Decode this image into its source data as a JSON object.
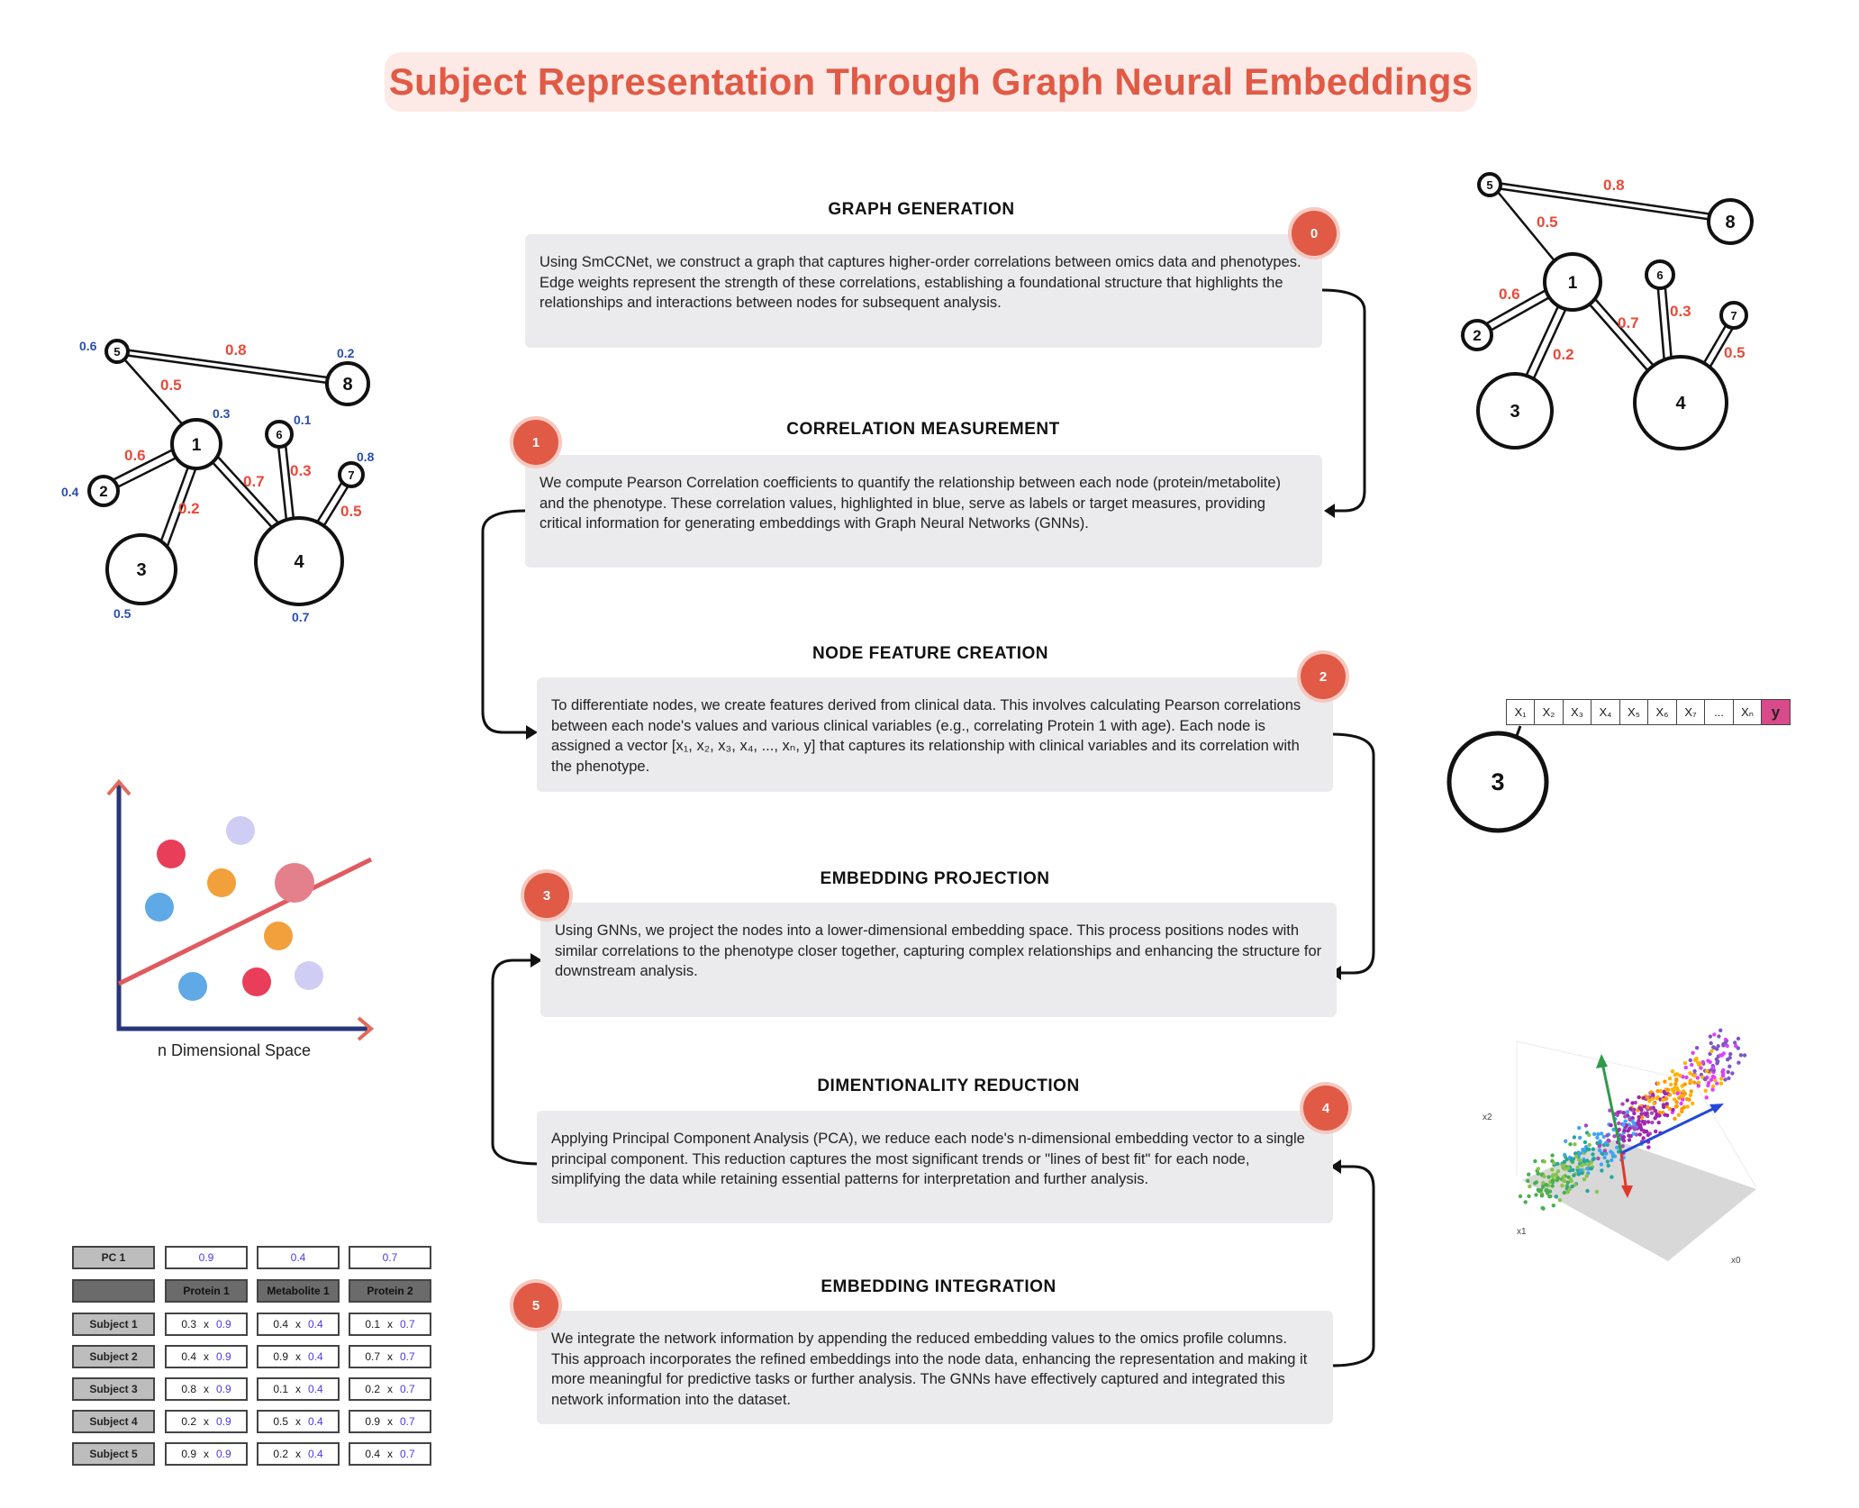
{
  "title": "Subject Representation Through Graph Neural Embeddings",
  "steps": [
    {
      "badge": "0",
      "title": "GRAPH GENERATION",
      "text": "Using SmCCNet, we construct a graph that captures higher-order correlations between omics data and phenotypes. Edge weights represent the strength of these correlations, establishing a foundational structure that highlights the relationships and interactions between nodes for subsequent analysis."
    },
    {
      "badge": "1",
      "title": "CORRELATION MEASUREMENT",
      "text": "We compute Pearson Correlation coefficients to quantify the relationship between each node (protein/metabolite) and the phenotype. These correlation values, highlighted in blue, serve as labels or target measures, providing critical information for generating embeddings with Graph Neural Networks (GNNs)."
    },
    {
      "badge": "2",
      "title": "NODE FEATURE CREATION",
      "text": "To differentiate nodes, we create features derived from clinical data. This involves calculating Pearson correlations between each node's values and various clinical variables (e.g., correlating Protein 1 with age). Each node is assigned a vector [x₁, x₂, x₃, x₄, ..., xₙ, y] that captures its relationship with clinical variables and its correlation with the phenotype."
    },
    {
      "badge": "3",
      "title": "EMBEDDING PROJECTION",
      "text": "Using GNNs, we project the nodes into a lower-dimensional embedding space. This process positions nodes with similar correlations to the phenotype closer together, capturing complex relationships and enhancing the structure for downstream analysis."
    },
    {
      "badge": "4",
      "title": "DIMENTIONALITY REDUCTION",
      "text": "Applying Principal Component Analysis (PCA), we reduce each node's n-dimensional embedding vector to a single principal component. This reduction captures the most significant trends or \"lines of best fit\" for each node, simplifying the data while retaining essential patterns for interpretation and further analysis."
    },
    {
      "badge": "5",
      "title": "EMBEDDING INTEGRATION",
      "text": "We integrate the network information by appending the reduced embedding values to the omics profile columns. This approach incorporates the refined embeddings into the node data, enhancing the representation and making it more meaningful for predictive tasks or further analysis. The GNNs have effectively captured and integrated this network information into the dataset."
    }
  ],
  "graph_left": {
    "nodes": [
      "1",
      "2",
      "3",
      "4",
      "5",
      "6",
      "7",
      "8"
    ],
    "edge_weights": [
      "0.8",
      "0.5",
      "0.6",
      "0.2",
      "0.7",
      "0.3",
      "0.5"
    ],
    "node_labels": [
      "0.3",
      "0.4",
      "0.5",
      "0.7",
      "0.6",
      "0.1",
      "0.8",
      "0.2"
    ]
  },
  "graph_right": {
    "nodes": [
      "1",
      "2",
      "3",
      "4",
      "5",
      "6",
      "7",
      "8"
    ],
    "edge_weights": [
      "0.8",
      "0.5",
      "0.6",
      "0.2",
      "0.7",
      "0.3",
      "0.5"
    ]
  },
  "feature_vector": {
    "node": "3",
    "cells": [
      "X₁",
      "X₂",
      "X₃",
      "X₄",
      "X₅",
      "X₆",
      "X₇",
      "...",
      "Xₙ",
      "y"
    ]
  },
  "scatter_caption": "n Dimensional Space",
  "pca_axes": {
    "x2": "x2",
    "x1": "x1",
    "x0": "x0"
  },
  "pc_table": {
    "pc_label": "PC 1",
    "pc_values": [
      "0.9",
      "0.4",
      "0.7"
    ],
    "columns": [
      "Protein 1",
      "Metabolite 1",
      "Protein 2"
    ],
    "rows": [
      {
        "subject": "Subject 1",
        "values": [
          "0.3",
          "0.4",
          "0.1"
        ]
      },
      {
        "subject": "Subject 2",
        "values": [
          "0.4",
          "0.9",
          "0.7"
        ]
      },
      {
        "subject": "Subject 3",
        "values": [
          "0.8",
          "0.1",
          "0.2"
        ]
      },
      {
        "subject": "Subject 4",
        "values": [
          "0.2",
          "0.5",
          "0.9"
        ]
      },
      {
        "subject": "Subject 5",
        "values": [
          "0.9",
          "0.2",
          "0.4"
        ]
      }
    ],
    "times": "x"
  },
  "colors": {
    "accent": "#e05a45",
    "edge_weight": "#e84a3a",
    "label_blue": "#2a4db0",
    "pc_blue": "#4a3be0",
    "box_bg": "#ebebed"
  }
}
